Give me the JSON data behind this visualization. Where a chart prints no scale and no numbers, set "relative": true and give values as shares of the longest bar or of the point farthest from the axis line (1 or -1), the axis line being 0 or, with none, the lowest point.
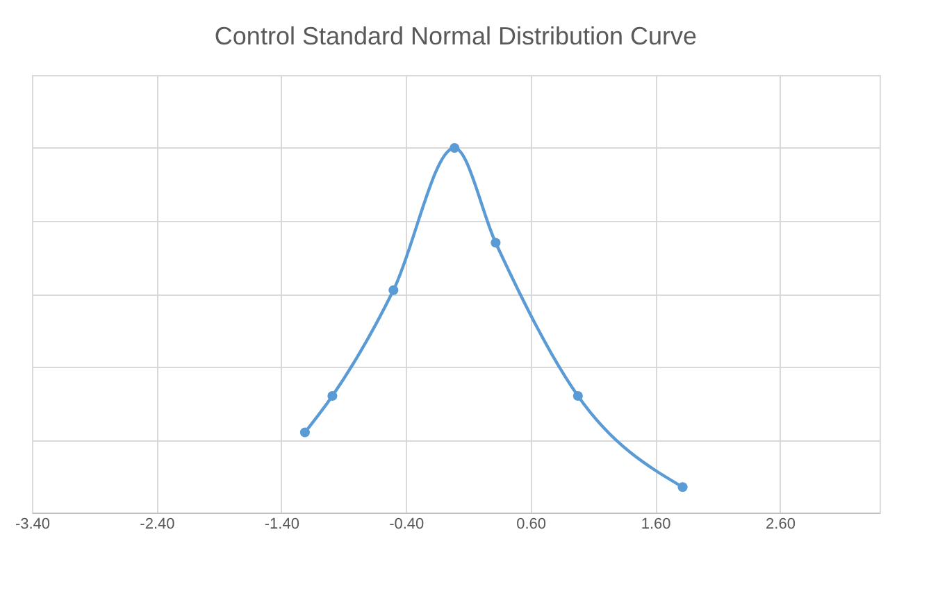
{
  "chart_data": {
    "type": "line",
    "title": "Control Standard Normal Distribution Curve",
    "relative": true,
    "grid": true,
    "marker": "circle",
    "line_style": "solid",
    "tick_labels": "x",
    "xlim": [
      -3.4,
      3.4
    ],
    "xticks": [
      {
        "value": -3.4,
        "label": "-3.40"
      },
      {
        "value": -2.4,
        "label": "-2.40"
      },
      {
        "value": -1.4,
        "label": "-1.40"
      },
      {
        "value": -0.4,
        "label": "-0.40"
      },
      {
        "value": 0.6,
        "label": "0.60"
      },
      {
        "value": 1.6,
        "label": "1.60"
      },
      {
        "value": 2.6,
        "label": "2.60"
      }
    ],
    "series": [
      {
        "color": "#5b9bd5",
        "x": [
          -1.21,
          -0.99,
          -0.5,
          -0.01,
          0.32,
          0.98,
          1.82
        ],
        "values": [
          0.22,
          0.32,
          0.61,
          1,
          0.74,
          0.32,
          0.07
        ]
      }
    ]
  }
}
